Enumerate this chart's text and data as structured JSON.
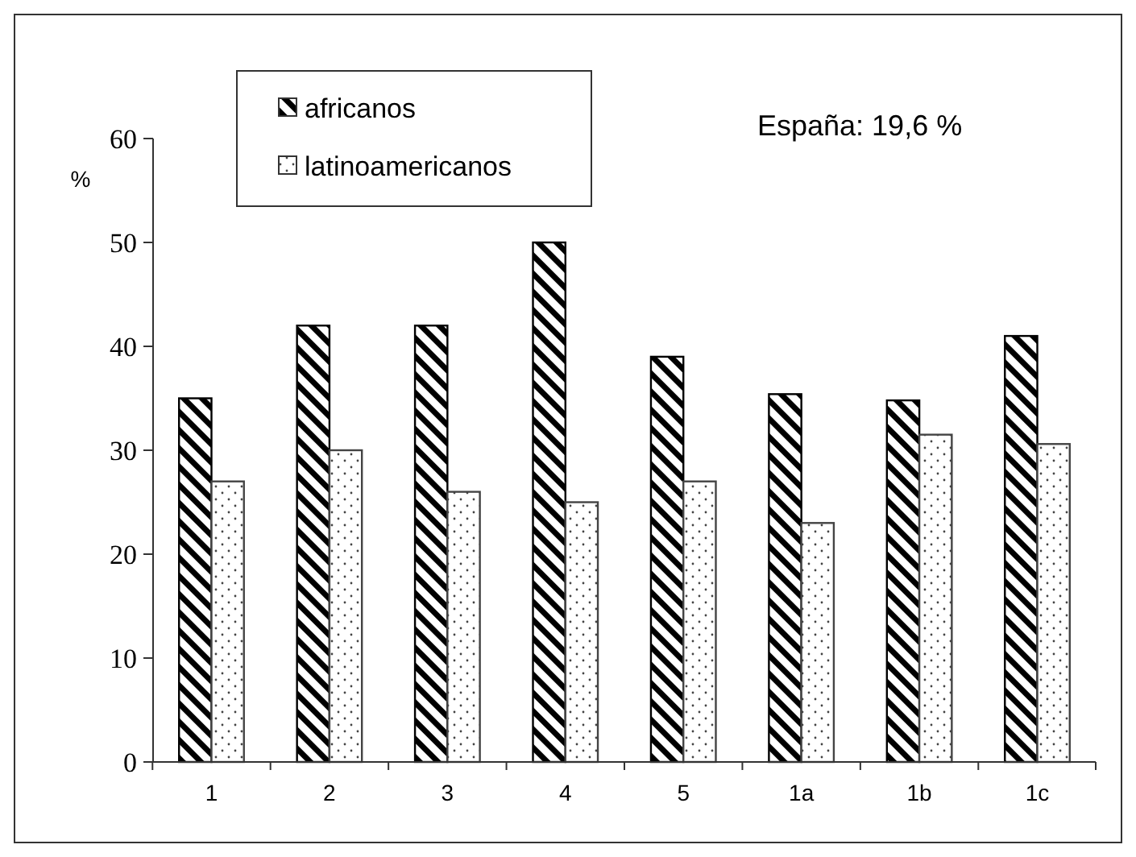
{
  "chart_data": {
    "type": "bar",
    "ylabel": "%",
    "categories": [
      "1",
      "2",
      "3",
      "4",
      "5",
      "1a",
      "1b",
      "1c"
    ],
    "series": [
      {
        "name": "africanos",
        "color": "#000000",
        "values": [
          35,
          42,
          42,
          50,
          39,
          35.4,
          34.8,
          41
        ]
      },
      {
        "name": "latinoamericanos",
        "color": "#444444",
        "values": [
          27,
          30,
          26,
          25,
          27,
          23,
          31.5,
          30.6
        ]
      }
    ],
    "ylim": [
      0,
      60
    ],
    "yticks": [
      0,
      10,
      20,
      30,
      40,
      50,
      60
    ],
    "legend": "top left",
    "annotations": [
      "España: 19,6 %"
    ]
  }
}
